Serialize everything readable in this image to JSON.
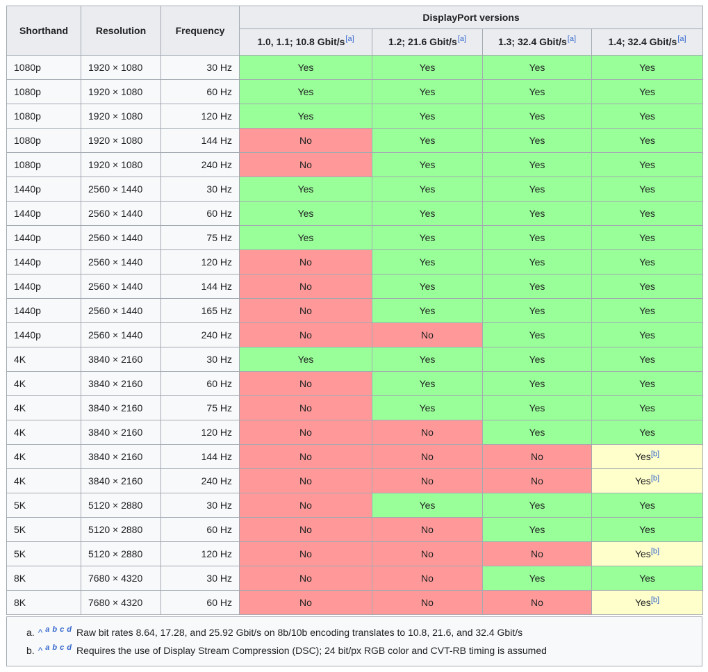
{
  "table": {
    "header": {
      "shorthand": "Shorthand",
      "resolution": "Resolution",
      "frequency": "Frequency",
      "group": "DisplayPort versions",
      "versions": [
        {
          "label": "1.0, 1.1; 10.8 Gbit/s",
          "note": "[a]"
        },
        {
          "label": "1.2; 21.6 Gbit/s",
          "note": "[a]"
        },
        {
          "label": "1.3; 32.4 Gbit/s",
          "note": "[a]"
        },
        {
          "label": "1.4; 32.4 Gbit/s",
          "note": "[a]"
        }
      ]
    },
    "rows": [
      {
        "shorthand": "1080p",
        "resolution": "1920 × 1080",
        "frequency": "30 Hz",
        "support": [
          {
            "v": "Yes"
          },
          {
            "v": "Yes"
          },
          {
            "v": "Yes"
          },
          {
            "v": "Yes"
          }
        ]
      },
      {
        "shorthand": "1080p",
        "resolution": "1920 × 1080",
        "frequency": "60 Hz",
        "support": [
          {
            "v": "Yes"
          },
          {
            "v": "Yes"
          },
          {
            "v": "Yes"
          },
          {
            "v": "Yes"
          }
        ]
      },
      {
        "shorthand": "1080p",
        "resolution": "1920 × 1080",
        "frequency": "120 Hz",
        "support": [
          {
            "v": "Yes"
          },
          {
            "v": "Yes"
          },
          {
            "v": "Yes"
          },
          {
            "v": "Yes"
          }
        ]
      },
      {
        "shorthand": "1080p",
        "resolution": "1920 × 1080",
        "frequency": "144 Hz",
        "support": [
          {
            "v": "No"
          },
          {
            "v": "Yes"
          },
          {
            "v": "Yes"
          },
          {
            "v": "Yes"
          }
        ]
      },
      {
        "shorthand": "1080p",
        "resolution": "1920 × 1080",
        "frequency": "240 Hz",
        "support": [
          {
            "v": "No"
          },
          {
            "v": "Yes"
          },
          {
            "v": "Yes"
          },
          {
            "v": "Yes"
          }
        ]
      },
      {
        "shorthand": "1440p",
        "resolution": "2560 × 1440",
        "frequency": "30 Hz",
        "support": [
          {
            "v": "Yes"
          },
          {
            "v": "Yes"
          },
          {
            "v": "Yes"
          },
          {
            "v": "Yes"
          }
        ]
      },
      {
        "shorthand": "1440p",
        "resolution": "2560 × 1440",
        "frequency": "60 Hz",
        "support": [
          {
            "v": "Yes"
          },
          {
            "v": "Yes"
          },
          {
            "v": "Yes"
          },
          {
            "v": "Yes"
          }
        ]
      },
      {
        "shorthand": "1440p",
        "resolution": "2560 × 1440",
        "frequency": "75 Hz",
        "support": [
          {
            "v": "Yes"
          },
          {
            "v": "Yes"
          },
          {
            "v": "Yes"
          },
          {
            "v": "Yes"
          }
        ]
      },
      {
        "shorthand": "1440p",
        "resolution": "2560 × 1440",
        "frequency": "120 Hz",
        "support": [
          {
            "v": "No"
          },
          {
            "v": "Yes"
          },
          {
            "v": "Yes"
          },
          {
            "v": "Yes"
          }
        ]
      },
      {
        "shorthand": "1440p",
        "resolution": "2560 × 1440",
        "frequency": "144 Hz",
        "support": [
          {
            "v": "No"
          },
          {
            "v": "Yes"
          },
          {
            "v": "Yes"
          },
          {
            "v": "Yes"
          }
        ]
      },
      {
        "shorthand": "1440p",
        "resolution": "2560 × 1440",
        "frequency": "165 Hz",
        "support": [
          {
            "v": "No"
          },
          {
            "v": "Yes"
          },
          {
            "v": "Yes"
          },
          {
            "v": "Yes"
          }
        ]
      },
      {
        "shorthand": "1440p",
        "resolution": "2560 × 1440",
        "frequency": "240 Hz",
        "support": [
          {
            "v": "No"
          },
          {
            "v": "No"
          },
          {
            "v": "Yes"
          },
          {
            "v": "Yes"
          }
        ]
      },
      {
        "shorthand": "4K",
        "resolution": "3840 × 2160",
        "frequency": "30 Hz",
        "support": [
          {
            "v": "Yes"
          },
          {
            "v": "Yes"
          },
          {
            "v": "Yes"
          },
          {
            "v": "Yes"
          }
        ]
      },
      {
        "shorthand": "4K",
        "resolution": "3840 × 2160",
        "frequency": "60 Hz",
        "support": [
          {
            "v": "No"
          },
          {
            "v": "Yes"
          },
          {
            "v": "Yes"
          },
          {
            "v": "Yes"
          }
        ]
      },
      {
        "shorthand": "4K",
        "resolution": "3840 × 2160",
        "frequency": "75 Hz",
        "support": [
          {
            "v": "No"
          },
          {
            "v": "Yes"
          },
          {
            "v": "Yes"
          },
          {
            "v": "Yes"
          }
        ]
      },
      {
        "shorthand": "4K",
        "resolution": "3840 × 2160",
        "frequency": "120 Hz",
        "support": [
          {
            "v": "No"
          },
          {
            "v": "No"
          },
          {
            "v": "Yes"
          },
          {
            "v": "Yes"
          }
        ]
      },
      {
        "shorthand": "4K",
        "resolution": "3840 × 2160",
        "frequency": "144 Hz",
        "support": [
          {
            "v": "No"
          },
          {
            "v": "No"
          },
          {
            "v": "No"
          },
          {
            "v": "Yes",
            "note": "[b]"
          }
        ]
      },
      {
        "shorthand": "4K",
        "resolution": "3840 × 2160",
        "frequency": "240 Hz",
        "support": [
          {
            "v": "No"
          },
          {
            "v": "No"
          },
          {
            "v": "No"
          },
          {
            "v": "Yes",
            "note": "[b]"
          }
        ]
      },
      {
        "shorthand": "5K",
        "resolution": "5120 × 2880",
        "frequency": "30 Hz",
        "support": [
          {
            "v": "No"
          },
          {
            "v": "Yes"
          },
          {
            "v": "Yes"
          },
          {
            "v": "Yes"
          }
        ]
      },
      {
        "shorthand": "5K",
        "resolution": "5120 × 2880",
        "frequency": "60 Hz",
        "support": [
          {
            "v": "No"
          },
          {
            "v": "No"
          },
          {
            "v": "Yes"
          },
          {
            "v": "Yes"
          }
        ]
      },
      {
        "shorthand": "5K",
        "resolution": "5120 × 2880",
        "frequency": "120 Hz",
        "support": [
          {
            "v": "No"
          },
          {
            "v": "No"
          },
          {
            "v": "No"
          },
          {
            "v": "Yes",
            "note": "[b]"
          }
        ]
      },
      {
        "shorthand": "8K",
        "resolution": "7680 × 4320",
        "frequency": "30 Hz",
        "support": [
          {
            "v": "No"
          },
          {
            "v": "No"
          },
          {
            "v": "Yes"
          },
          {
            "v": "Yes"
          }
        ]
      },
      {
        "shorthand": "8K",
        "resolution": "7680 × 4320",
        "frequency": "60 Hz",
        "support": [
          {
            "v": "No"
          },
          {
            "v": "No"
          },
          {
            "v": "No"
          },
          {
            "v": "Yes",
            "note": "[b]"
          }
        ]
      }
    ]
  },
  "footnotes": [
    {
      "label": "a.",
      "caret": "^",
      "backrefs": [
        "a",
        "b",
        "c",
        "d"
      ],
      "text": "Raw bit rates 8.64, 17.28, and 25.92 Gbit/s on 8b/10b encoding translates to 10.8, 21.6, and 32.4 Gbit/s"
    },
    {
      "label": "b.",
      "caret": "^",
      "backrefs": [
        "a",
        "b",
        "c",
        "d"
      ],
      "text": "Requires the use of Display Stream Compression (DSC); 24 bit/px RGB color and CVT-RB timing is assumed"
    }
  ],
  "colors": {
    "yes_bg": "#99ff99",
    "no_bg": "#ff9999",
    "partial_bg": "#ffffcc",
    "header_bg": "#eaecf0",
    "row_bg": "#f8f9fa",
    "border": "#a2a9b1",
    "link": "#3366cc"
  }
}
